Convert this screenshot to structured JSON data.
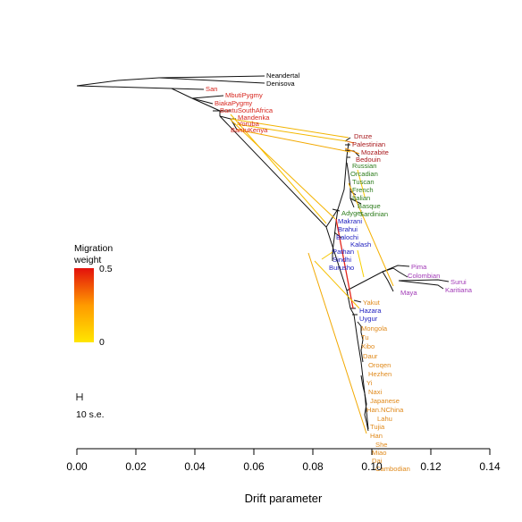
{
  "colors": {
    "outgroup": "#000000",
    "african": "#d7261e",
    "middle_eastern": "#a8191d",
    "european": "#2e7d1e",
    "central_south_asian": "#1d1dbf",
    "american": "#a23bb7",
    "east_asian": "#e08a1c",
    "tree_edge": "#111111",
    "migration_low": "#ffe600",
    "migration_high": "#e3110c"
  },
  "legend": {
    "title_line1": "Migration",
    "title_line2": "weight",
    "max_label": "0.5",
    "min_label": "0"
  },
  "scale": {
    "label": "10 s.e."
  },
  "x_axis": {
    "title": "Drift parameter",
    "ticks": [
      "0.00",
      "0.02",
      "0.04",
      "0.06",
      "0.08",
      "0.10",
      "0.12",
      "0.14"
    ],
    "range": [
      0,
      0.14
    ]
  },
  "populations": [
    {
      "name": "Neandertal",
      "group": "outgroup"
    },
    {
      "name": "Denisova",
      "group": "outgroup"
    },
    {
      "name": "San",
      "group": "african"
    },
    {
      "name": "MbutiPygmy",
      "group": "african"
    },
    {
      "name": "BiakaPygmy",
      "group": "african"
    },
    {
      "name": "BantuSouthAfrica",
      "group": "african"
    },
    {
      "name": "Mandenka",
      "group": "african"
    },
    {
      "name": "Yoruba",
      "group": "african"
    },
    {
      "name": "BantuKenya",
      "group": "african"
    },
    {
      "name": "Druze",
      "group": "middle_eastern"
    },
    {
      "name": "Palestinian",
      "group": "middle_eastern"
    },
    {
      "name": "Mozabite",
      "group": "middle_eastern"
    },
    {
      "name": "Bedouin",
      "group": "middle_eastern"
    },
    {
      "name": "Russian",
      "group": "european"
    },
    {
      "name": "Orcadian",
      "group": "european"
    },
    {
      "name": "Tuscan",
      "group": "european"
    },
    {
      "name": "French",
      "group": "european"
    },
    {
      "name": "Italian",
      "group": "european"
    },
    {
      "name": "Basque",
      "group": "european"
    },
    {
      "name": "Sardinian",
      "group": "european"
    },
    {
      "name": "Adygei",
      "group": "european"
    },
    {
      "name": "Makrani",
      "group": "central_south_asian"
    },
    {
      "name": "Brahui",
      "group": "central_south_asian"
    },
    {
      "name": "Balochi",
      "group": "central_south_asian"
    },
    {
      "name": "Kalash",
      "group": "central_south_asian"
    },
    {
      "name": "Pathan",
      "group": "central_south_asian"
    },
    {
      "name": "Sindhi",
      "group": "central_south_asian"
    },
    {
      "name": "Burusho",
      "group": "central_south_asian"
    },
    {
      "name": "Pima",
      "group": "american"
    },
    {
      "name": "Colombian",
      "group": "american"
    },
    {
      "name": "Surui",
      "group": "american"
    },
    {
      "name": "Karitiana",
      "group": "american"
    },
    {
      "name": "Maya",
      "group": "american"
    },
    {
      "name": "Yakut",
      "group": "east_asian"
    },
    {
      "name": "Hazara",
      "group": "central_south_asian"
    },
    {
      "name": "Uygur",
      "group": "central_south_asian"
    },
    {
      "name": "Mongola",
      "group": "east_asian"
    },
    {
      "name": "Tu",
      "group": "east_asian"
    },
    {
      "name": "Xibo",
      "group": "east_asian"
    },
    {
      "name": "Daur",
      "group": "east_asian"
    },
    {
      "name": "Oroqen",
      "group": "east_asian"
    },
    {
      "name": "Hezhen",
      "group": "east_asian"
    },
    {
      "name": "Yi",
      "group": "east_asian"
    },
    {
      "name": "Naxi",
      "group": "east_asian"
    },
    {
      "name": "Japanese",
      "group": "east_asian"
    },
    {
      "name": "Han.NChina",
      "group": "east_asian"
    },
    {
      "name": "Lahu",
      "group": "east_asian"
    },
    {
      "name": "Tujia",
      "group": "east_asian"
    },
    {
      "name": "Han",
      "group": "east_asian"
    },
    {
      "name": "She",
      "group": "east_asian"
    },
    {
      "name": "Miao",
      "group": "east_asian"
    },
    {
      "name": "Dai",
      "group": "east_asian"
    },
    {
      "name": "Cambodian",
      "group": "east_asian"
    }
  ]
}
